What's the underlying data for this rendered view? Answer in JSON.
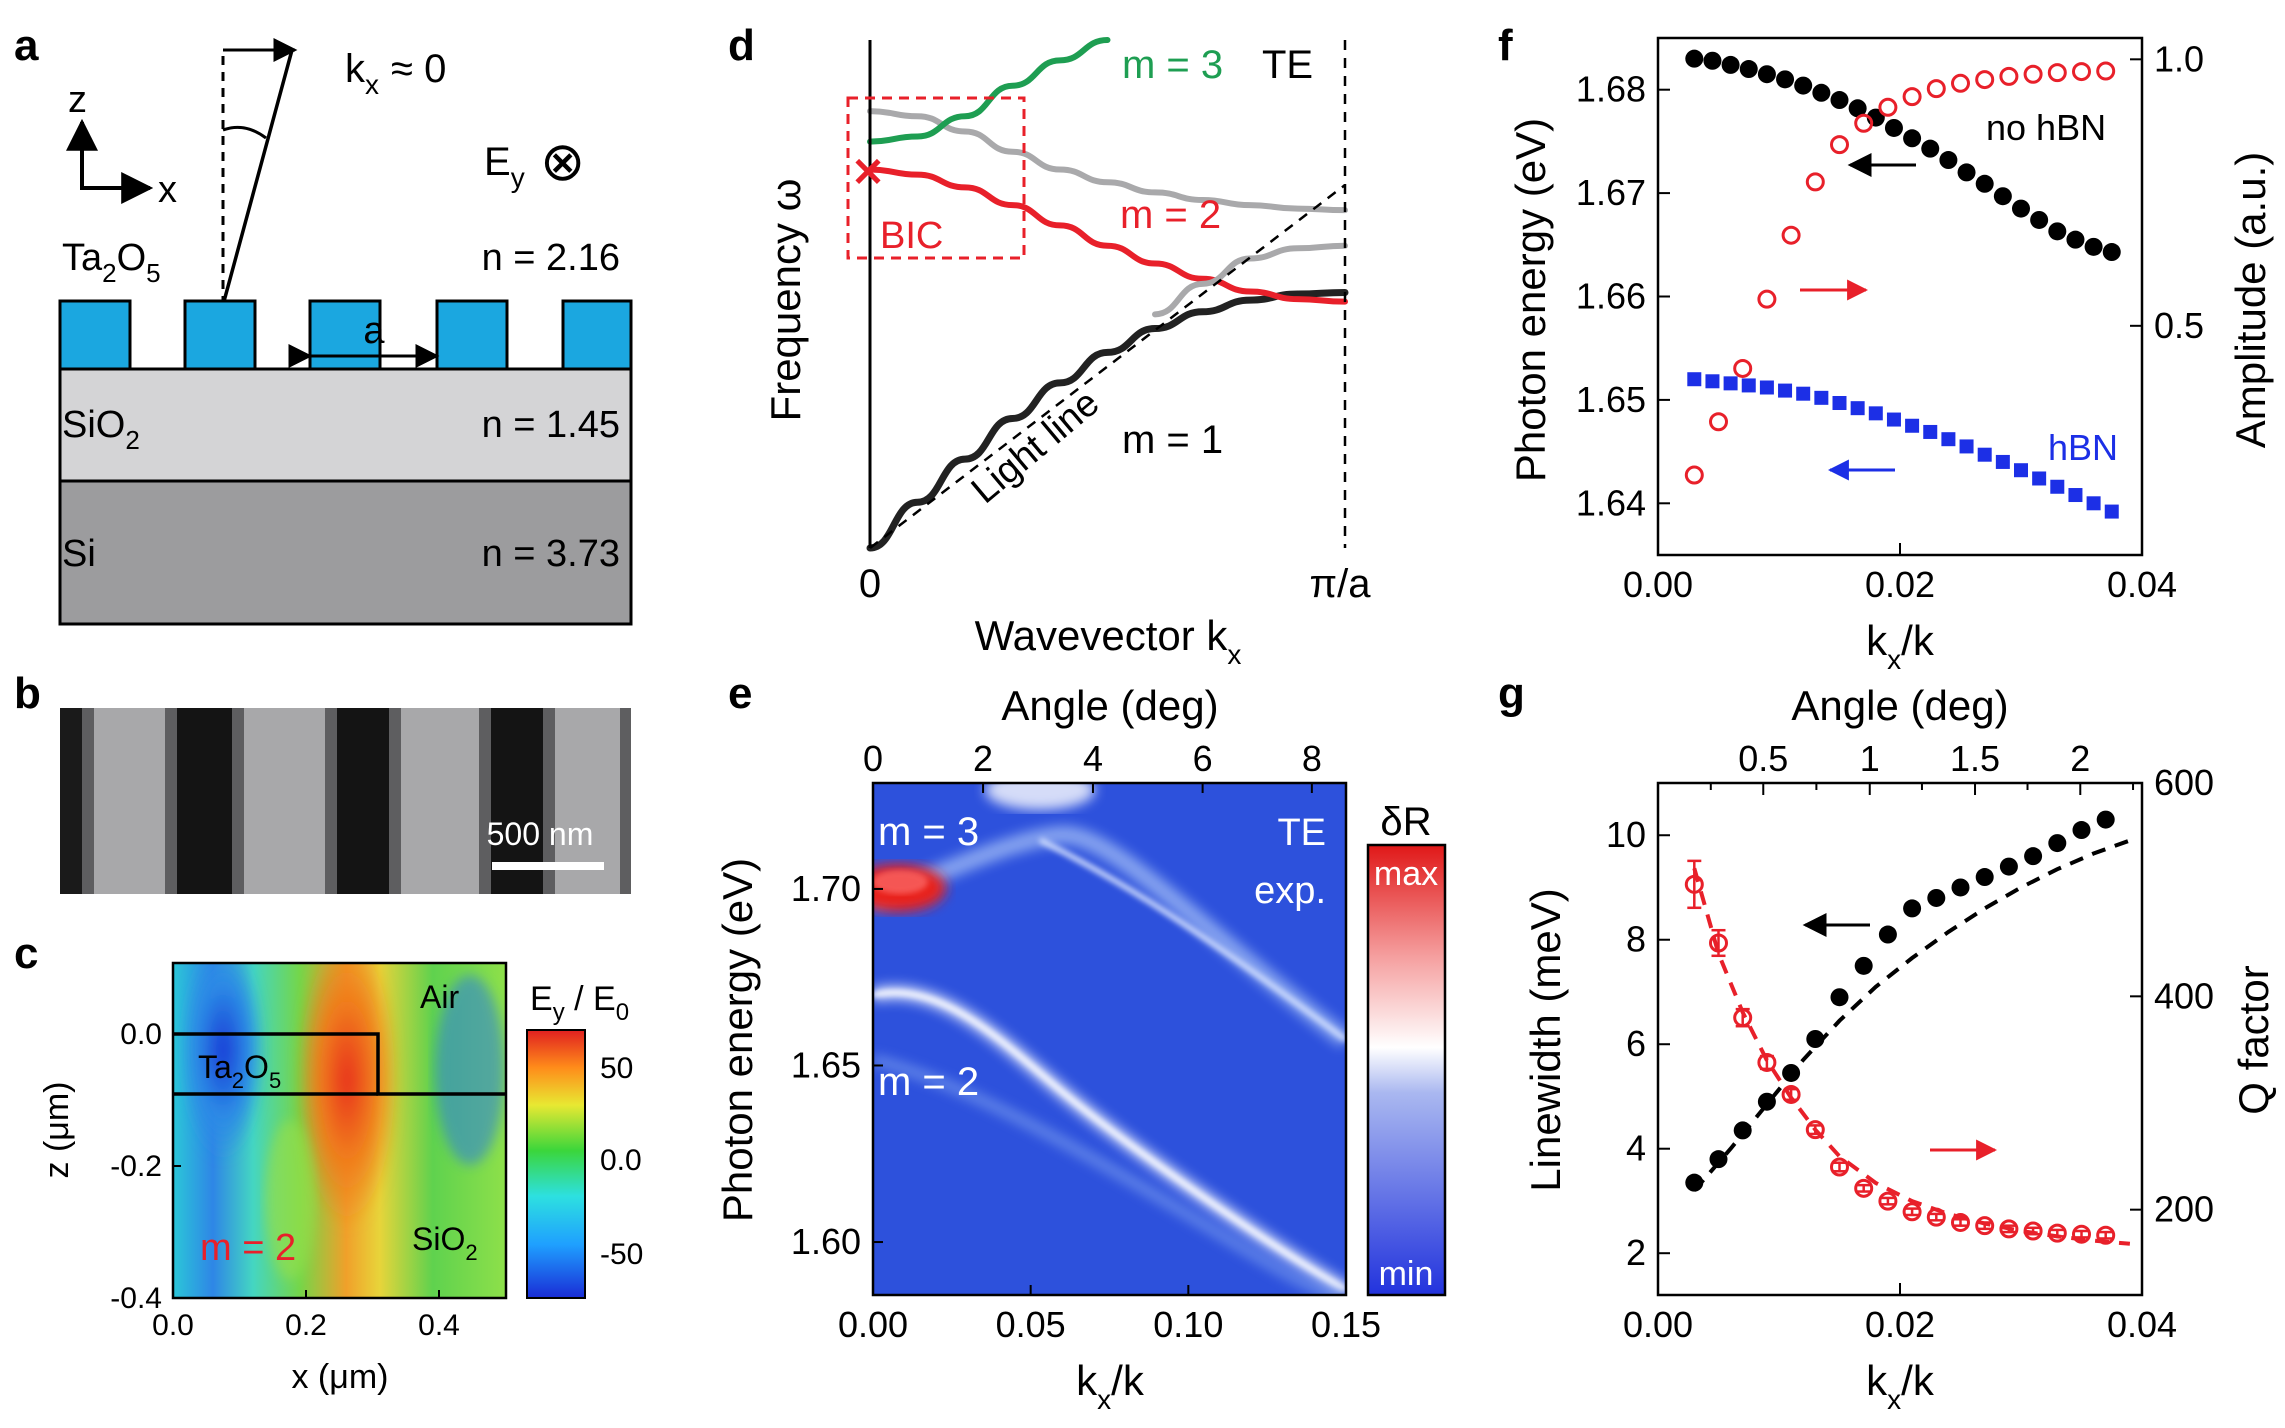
{
  "panel_labels": {
    "a": "a",
    "b": "b",
    "c": "c",
    "d": "d",
    "e": "e",
    "f": "f",
    "g": "g"
  },
  "panel_a": {
    "axis_z": "z",
    "axis_x": "x",
    "kx": "k",
    "kx_sub": "x",
    "kx_approx": "≈ 0",
    "field": "E",
    "field_sub": "y",
    "field_sym": "⊗",
    "layers": [
      {
        "name": "Ta",
        "sub1": "2",
        "mid": "O",
        "sub2": "5",
        "n": "n = 2.16",
        "color": "#1ba7e0"
      },
      {
        "name": "SiO",
        "sub1": "2",
        "mid": "",
        "sub2": "",
        "n": "n = 1.45",
        "color": "#d4d4d6"
      },
      {
        "name": "Si",
        "sub1": "",
        "mid": "",
        "sub2": "",
        "n": "n = 3.73",
        "color": "#9c9c9e"
      }
    ],
    "period": "a"
  },
  "panel_b": {
    "scalebar": "500 nm"
  },
  "panel_c": {
    "title_main": "E",
    "title_sub": "y",
    "title_mid": " / E",
    "title_sub2": "0",
    "material_air": "Air",
    "material_ta": "Ta",
    "ta_sub1": "2",
    "ta_mid": "O",
    "ta_sub2": "5",
    "material_sio": "SiO",
    "sio_sub": "2",
    "mode": "m = 2",
    "xlabel": "x (μm)",
    "ylabel": "z (μm)",
    "xticks": [
      "0.0",
      "0.2",
      "0.4"
    ],
    "yticks": [
      "0.0",
      "-0.2",
      "-0.4"
    ],
    "cbar_ticks": [
      "50",
      "0.0",
      "-50"
    ]
  },
  "chart_data": [
    {
      "panel": "d",
      "type": "line",
      "title": "",
      "xlabel": "Wavevector k",
      "xlabel_sub": "x",
      "ylabel": "Frequency ω",
      "xticks": [
        "0",
        "π/a"
      ],
      "labels": {
        "m3": "m = 3",
        "te": "TE",
        "m2": "m = 2",
        "m1": "m = 1",
        "light": "Light line",
        "bic": "BIC"
      },
      "x": [
        0,
        0.1,
        0.2,
        0.3,
        0.4,
        0.5,
        0.6,
        0.7,
        0.8,
        0.9,
        1.0
      ],
      "series": [
        {
          "name": "m = 1",
          "color": "#222222",
          "values": [
            0,
            0.09,
            0.175,
            0.255,
            0.325,
            0.385,
            0.432,
            0.465,
            0.488,
            0.5,
            0.503
          ]
        },
        {
          "name": "m = 2",
          "color": "#e8202a",
          "values": [
            0.745,
            0.735,
            0.71,
            0.675,
            0.635,
            0.595,
            0.56,
            0.53,
            0.505,
            0.49,
            0.485
          ]
        },
        {
          "name": "upper gray",
          "color": "#a9a9ab",
          "values": [
            0.86,
            0.85,
            0.82,
            0.78,
            0.745,
            0.72,
            0.7,
            0.685,
            0.675,
            0.668,
            0.665
          ]
        },
        {
          "name": "lower gray",
          "color": "#a9a9ab",
          "values": [
            null,
            null,
            null,
            null,
            null,
            null,
            0.46,
            0.52,
            0.57,
            0.59,
            0.595
          ]
        },
        {
          "name": "m = 3",
          "color": "#1e9e52",
          "values": [
            0.8,
            0.81,
            0.85,
            0.91,
            0.96,
            1.0,
            null,
            null,
            null,
            null,
            null
          ]
        }
      ]
    },
    {
      "panel": "e",
      "type": "heatmap",
      "title": "",
      "xlabel": "k",
      "xlabel_sub": "x",
      "xlabel_tail": "/k",
      "ylabel": "Photon energy (eV)",
      "top_xlabel": "Angle (deg)",
      "xlim": [
        0,
        0.15
      ],
      "ylim": [
        1.585,
        1.73
      ],
      "xticks": [
        "0.00",
        "0.05",
        "0.10",
        "0.15"
      ],
      "yticks": [
        "1.70",
        "1.65",
        "1.60"
      ],
      "top_ticks": [
        "0",
        "2",
        "4",
        "6",
        "8"
      ],
      "annotations": {
        "m3": "m = 3",
        "m2": "m = 2",
        "te": "TE",
        "exp": "exp.",
        "cbar_title": "δR",
        "cbar_max": "max",
        "cbar_min": "min"
      }
    },
    {
      "panel": "f",
      "type": "scatter",
      "xlabel": "k",
      "xlabel_sub": "x",
      "xlabel_tail": "/k",
      "ylabel": "Photon energy (eV)",
      "y2label": "Amplitude (a.u.)",
      "xlim": [
        0,
        0.04
      ],
      "ylim": [
        1.635,
        1.685
      ],
      "y2lim": [
        0.07,
        1.04
      ],
      "xticks": [
        "0.00",
        "0.02",
        "0.04"
      ],
      "yticks": [
        "1.68",
        "1.67",
        "1.66",
        "1.65",
        "1.64"
      ],
      "y2ticks": [
        "1.0",
        "0.5"
      ],
      "labels": {
        "nohbn": "no hBN",
        "hbn": "hBN"
      },
      "series": [
        {
          "name": "no hBN",
          "color": "#000000",
          "marker": "circle-filled",
          "axis": "left",
          "x": [
            0.003,
            0.0045,
            0.006,
            0.0075,
            0.009,
            0.0105,
            0.012,
            0.0135,
            0.015,
            0.0165,
            0.018,
            0.0195,
            0.021,
            0.0225,
            0.024,
            0.0255,
            0.027,
            0.0285,
            0.03,
            0.0315,
            0.033,
            0.0345,
            0.036,
            0.0375
          ],
          "values": [
            1.683,
            1.6828,
            1.6824,
            1.682,
            1.6815,
            1.681,
            1.6804,
            1.6797,
            1.679,
            1.6782,
            1.6773,
            1.6763,
            1.6753,
            1.6743,
            1.6732,
            1.672,
            1.6709,
            1.6697,
            1.6685,
            1.6674,
            1.6663,
            1.6655,
            1.6648,
            1.6643
          ]
        },
        {
          "name": "hBN",
          "color": "#1c2fe6",
          "marker": "square-filled",
          "axis": "left",
          "x": [
            0.003,
            0.0045,
            0.006,
            0.0075,
            0.009,
            0.0105,
            0.012,
            0.0135,
            0.015,
            0.0165,
            0.018,
            0.0195,
            0.021,
            0.0225,
            0.024,
            0.0255,
            0.027,
            0.0285,
            0.03,
            0.0315,
            0.033,
            0.0345,
            0.036,
            0.0375
          ],
          "values": [
            1.652,
            1.6518,
            1.6516,
            1.6514,
            1.6512,
            1.6509,
            1.6506,
            1.6502,
            1.6497,
            1.6492,
            1.6487,
            1.6481,
            1.6475,
            1.6469,
            1.6462,
            1.6455,
            1.6447,
            1.644,
            1.6432,
            1.6424,
            1.6416,
            1.6408,
            1.64,
            1.6392
          ]
        },
        {
          "name": "Amplitude",
          "color": "#e8202a",
          "marker": "circle-open",
          "axis": "right",
          "x": [
            0.003,
            0.005,
            0.007,
            0.009,
            0.011,
            0.013,
            0.015,
            0.017,
            0.019,
            0.021,
            0.023,
            0.025,
            0.027,
            0.029,
            0.031,
            0.033,
            0.035,
            0.037
          ],
          "values": [
            0.22,
            0.32,
            0.42,
            0.55,
            0.67,
            0.77,
            0.84,
            0.88,
            0.91,
            0.93,
            0.945,
            0.955,
            0.962,
            0.968,
            0.972,
            0.975,
            0.977,
            0.978
          ]
        }
      ]
    },
    {
      "panel": "g",
      "type": "scatter",
      "xlabel": "k",
      "xlabel_sub": "x",
      "xlabel_tail": "/k",
      "ylabel": "Linewidth (meV)",
      "y2label": "Q factor",
      "top_xlabel": "Angle (deg)",
      "xlim": [
        0,
        0.04
      ],
      "ylim": [
        1.2,
        11
      ],
      "y2lim": [
        120,
        600
      ],
      "xticks": [
        "0.00",
        "0.02",
        "0.04"
      ],
      "yticks": [
        "10",
        "8",
        "6",
        "4",
        "2"
      ],
      "y2ticks": [
        "600",
        "400",
        "200"
      ],
      "top_ticks": [
        "0.5",
        "1",
        "1.5",
        "2"
      ],
      "top_tick_k": [
        0.0087,
        0.0175,
        0.0262,
        0.0349
      ],
      "top_ticks_extra_angles": [
        0.25,
        0.75,
        1.25,
        1.75,
        2.25
      ],
      "series": [
        {
          "name": "Linewidth",
          "color": "#000000",
          "marker": "circle-filled",
          "axis": "left",
          "x": [
            0.003,
            0.005,
            0.007,
            0.009,
            0.011,
            0.013,
            0.015,
            0.017,
            0.019,
            0.021,
            0.023,
            0.025,
            0.027,
            0.029,
            0.031,
            0.033,
            0.035,
            0.037
          ],
          "values": [
            3.35,
            3.8,
            4.35,
            4.9,
            5.45,
            6.1,
            6.9,
            7.5,
            8.1,
            8.6,
            8.8,
            9.0,
            9.2,
            9.4,
            9.6,
            9.85,
            10.1,
            10.3
          ]
        },
        {
          "name": "Linewidth fit",
          "color": "#000000",
          "line": "dashed",
          "axis": "left",
          "x": [
            0.003,
            0.006,
            0.009,
            0.012,
            0.015,
            0.018,
            0.021,
            0.024,
            0.027,
            0.03,
            0.033,
            0.036,
            0.039
          ],
          "values": [
            3.2,
            4.0,
            4.85,
            5.7,
            6.45,
            7.1,
            7.65,
            8.15,
            8.6,
            9.0,
            9.35,
            9.65,
            9.9
          ]
        },
        {
          "name": "Q factor",
          "color": "#e8202a",
          "marker": "circle-open",
          "axis": "right",
          "errorbar": true,
          "x": [
            0.003,
            0.005,
            0.007,
            0.009,
            0.011,
            0.013,
            0.015,
            0.017,
            0.019,
            0.021,
            0.023,
            0.025,
            0.027,
            0.029,
            0.031,
            0.033,
            0.035,
            0.037
          ],
          "values": [
            505,
            450,
            380,
            338,
            308,
            275,
            240,
            220,
            208,
            198,
            193,
            188,
            185,
            182,
            180,
            178,
            177,
            176
          ],
          "errors": [
            22,
            12,
            8,
            6,
            5,
            4,
            4,
            3,
            3,
            3,
            3,
            3,
            3,
            3,
            3,
            3,
            3,
            3
          ]
        },
        {
          "name": "Q fit",
          "color": "#e8202a",
          "line": "dashed",
          "axis": "right",
          "x": [
            0.003,
            0.005,
            0.007,
            0.009,
            0.011,
            0.013,
            0.015,
            0.018,
            0.021,
            0.024,
            0.027,
            0.03,
            0.033,
            0.036,
            0.039
          ],
          "values": [
            520,
            440,
            385,
            340,
            305,
            275,
            250,
            225,
            208,
            196,
            187,
            180,
            175,
            171,
            168
          ]
        }
      ]
    }
  ]
}
